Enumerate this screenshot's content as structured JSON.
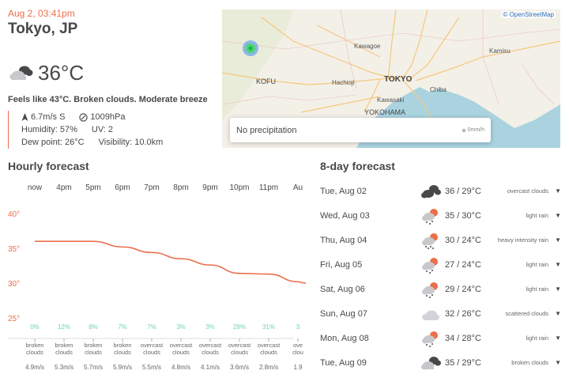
{
  "current": {
    "datetime": "Aug 2, 03:41pm",
    "city": "Tokyo, JP",
    "icon": "broken-clouds-icon",
    "temperature": "36°C",
    "summary": "Feels like 43°C. Broken clouds. Moderate breeze",
    "wind": "6.7m/s S",
    "pressure": "1009hPa",
    "humidity": "Humidity: 57%",
    "uv": "UV: 2",
    "dew_point": "Dew point: 26°C",
    "visibility": "Visibility: 10.0km"
  },
  "map": {
    "attribution": "© OpenStreetMap",
    "precipitation_text": "No precipitation",
    "precipitation_unit": "0mm/h",
    "labels": {
      "kawagoe": "Kawagoe",
      "kamisu": "Kamisu",
      "kofu": "KOFU",
      "hachioji": "Hachioji",
      "tokyo": "TOKYO",
      "chiba": "Chiba",
      "kawasaki": "Kawasaki",
      "yokohama": "YOKOHAMA"
    }
  },
  "hourly": {
    "title": "Hourly forecast",
    "hours": [
      "now",
      "4pm",
      "5pm",
      "6pm",
      "7pm",
      "8pm",
      "9pm",
      "10pm",
      "11pm",
      "Au"
    ],
    "temps": [
      36,
      36,
      36,
      35.2,
      34.4,
      33.5,
      32.6,
      31.4,
      31.3,
      30.2
    ],
    "pop": [
      "0%",
      "12%",
      "8%",
      "7%",
      "7%",
      "3%",
      "3%",
      "28%",
      "31%",
      "3"
    ],
    "desc": [
      [
        "broken",
        "clouds"
      ],
      [
        "broken",
        "clouds"
      ],
      [
        "broken",
        "clouds"
      ],
      [
        "broken",
        "clouds"
      ],
      [
        "overcast",
        "clouds"
      ],
      [
        "overcast",
        "clouds"
      ],
      [
        "overcast",
        "clouds"
      ],
      [
        "overcast",
        "clouds"
      ],
      [
        "overcast",
        "clouds"
      ],
      [
        "ove",
        "clou"
      ]
    ],
    "wind": [
      "4.9m/s",
      "5.3m/s",
      "5.7m/s",
      "5.9m/s",
      "5.5m/s",
      "4.8m/s",
      "4.1m/s",
      "3.6m/s",
      "2.8m/s",
      "1.9"
    ],
    "y_ticks": [
      "40°",
      "35°",
      "30°",
      "25°"
    ],
    "colors": {
      "temp": "#eb6e4b",
      "pop": "#6fd2bb"
    }
  },
  "daily": {
    "title": "8-day forecast",
    "days": [
      {
        "name": "Tue, Aug 02",
        "temps": "36 / 29°C",
        "desc": "overcast clouds",
        "icon": "overcast-clouds-icon"
      },
      {
        "name": "Wed, Aug 03",
        "temps": "35 / 30°C",
        "desc": "light rain",
        "icon": "light-rain-icon"
      },
      {
        "name": "Thu, Aug 04",
        "temps": "30 / 24°C",
        "desc": "heavy intensity rain",
        "icon": "heavy-rain-icon"
      },
      {
        "name": "Fri, Aug 05",
        "temps": "27 / 24°C",
        "desc": "light rain",
        "icon": "light-rain-icon"
      },
      {
        "name": "Sat, Aug 06",
        "temps": "29 / 24°C",
        "desc": "light rain",
        "icon": "light-rain-icon"
      },
      {
        "name": "Sun, Aug 07",
        "temps": "32 / 26°C",
        "desc": "scattered clouds",
        "icon": "scattered-clouds-icon"
      },
      {
        "name": "Mon, Aug 08",
        "temps": "34 / 28°C",
        "desc": "light rain",
        "icon": "light-rain-icon"
      },
      {
        "name": "Tue, Aug 09",
        "temps": "35 / 29°C",
        "desc": "broken clouds",
        "icon": "broken-clouds-icon"
      }
    ]
  }
}
